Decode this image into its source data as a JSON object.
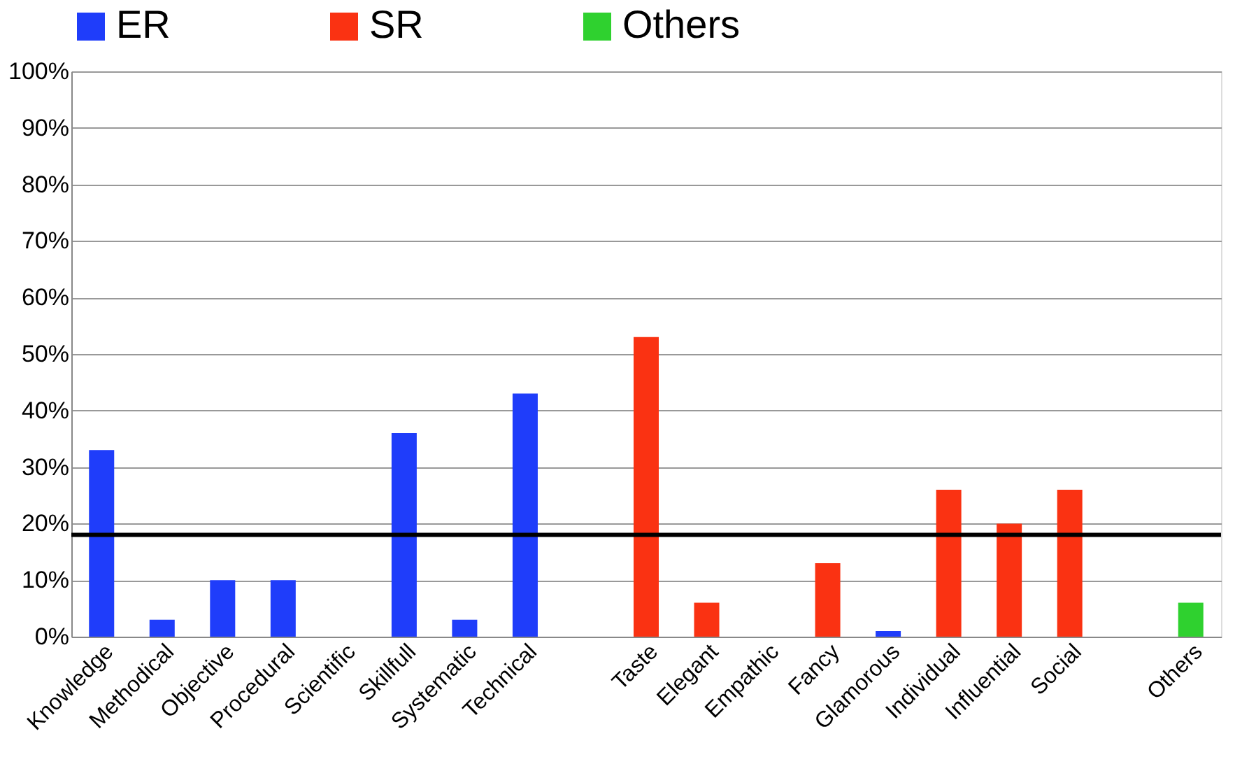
{
  "chart_data": {
    "type": "bar",
    "categories": [
      "Knowledge",
      "Methodical",
      "Objective",
      "Procedural",
      "Scientific",
      "Skillfull",
      "Systematic",
      "Technical",
      null,
      "Taste",
      "Elegant",
      "Empathic",
      "Fancy",
      "Glamorous",
      "Individual",
      "Influential",
      "Social",
      null,
      "Others"
    ],
    "series": [
      {
        "name": "ER",
        "color": "#1f3dfa",
        "values": [
          33,
          3,
          10,
          10,
          0,
          36,
          3,
          43,
          null,
          null,
          null,
          null,
          null,
          1,
          null,
          null,
          null,
          null,
          null
        ]
      },
      {
        "name": "SR",
        "color": "#fa3212",
        "values": [
          null,
          null,
          null,
          null,
          null,
          null,
          null,
          null,
          null,
          53,
          6,
          0,
          13,
          null,
          26,
          20,
          26,
          null,
          null
        ]
      },
      {
        "name": "Others",
        "color": "#2fd12f",
        "values": [
          null,
          null,
          null,
          null,
          null,
          null,
          null,
          null,
          null,
          null,
          null,
          null,
          null,
          null,
          null,
          null,
          null,
          null,
          6
        ]
      }
    ],
    "ylim": [
      0,
      100
    ],
    "yticks": [
      {
        "value": 0,
        "label": "0%"
      },
      {
        "value": 10,
        "label": "10%"
      },
      {
        "value": 20,
        "label": "20%"
      },
      {
        "value": 30,
        "label": "30%"
      },
      {
        "value": 40,
        "label": "40%"
      },
      {
        "value": 50,
        "label": "50%"
      },
      {
        "value": 60,
        "label": "60%"
      },
      {
        "value": 70,
        "label": "70%"
      },
      {
        "value": 80,
        "label": "80%"
      },
      {
        "value": 90,
        "label": "90%"
      },
      {
        "value": 100,
        "label": "100%"
      }
    ],
    "ref_lines": [
      {
        "axis": "y",
        "value": 18,
        "color": "#000000"
      }
    ],
    "grid": "y",
    "legend": "top"
  }
}
